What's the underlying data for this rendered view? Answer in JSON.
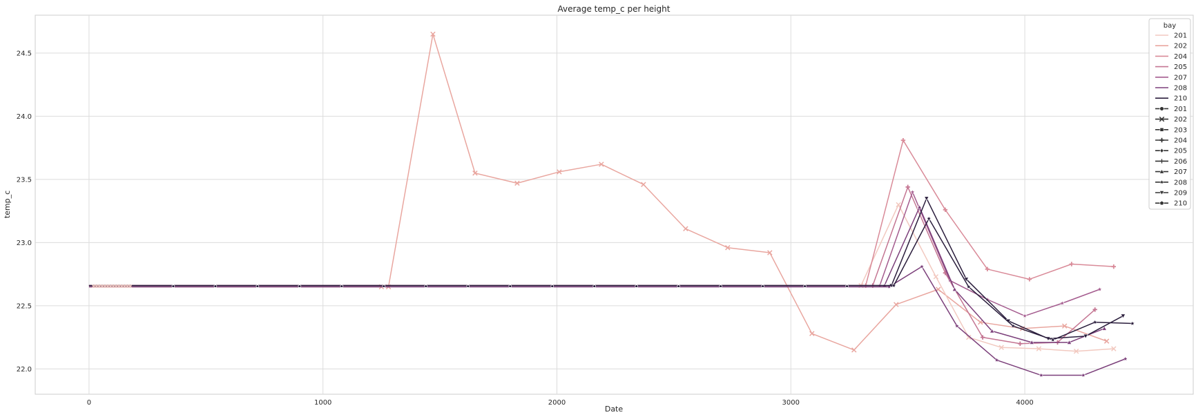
{
  "chart_data": {
    "type": "line",
    "title": "Average temp_c per height",
    "xlabel": "Date",
    "ylabel": "temp_c",
    "xlim": [
      -230,
      4720
    ],
    "ylim": [
      21.8,
      24.8
    ],
    "xticks": [
      0,
      1000,
      2000,
      3000,
      4000
    ],
    "yticks": [
      22.0,
      22.5,
      23.0,
      23.5,
      24.0,
      24.5
    ],
    "grid": true,
    "legend_title": "bay",
    "legend_placement": "top-right",
    "hue_legend": [
      {
        "label": "201",
        "color": "#f2c9c0"
      },
      {
        "label": "202",
        "color": "#e9a69f"
      },
      {
        "label": "204",
        "color": "#d98a98"
      },
      {
        "label": "205",
        "color": "#c47592"
      },
      {
        "label": "207",
        "color": "#a45b8e"
      },
      {
        "label": "208",
        "color": "#7b3f7a"
      },
      {
        "label": "210",
        "color": "#2a1d3c"
      }
    ],
    "style_legend": [
      {
        "label": "201",
        "marker": "circle"
      },
      {
        "label": "202",
        "marker": "x"
      },
      {
        "label": "203",
        "marker": "square"
      },
      {
        "label": "204",
        "marker": "plus"
      },
      {
        "label": "205",
        "marker": "diamond"
      },
      {
        "label": "206",
        "marker": "cross"
      },
      {
        "label": "207",
        "marker": "triangle-up"
      },
      {
        "label": "208",
        "marker": "star"
      },
      {
        "label": "209",
        "marker": "triangle-down"
      },
      {
        "label": "210",
        "marker": "pentagon"
      }
    ],
    "series": [
      {
        "color": "#e9a69f",
        "marker": "x",
        "x": [
          0,
          40,
          80,
          1250,
          1280,
          1470,
          1650,
          1830,
          2010,
          2190,
          2370,
          2550,
          2730,
          2910,
          3090,
          3270,
          3450,
          3630,
          3810,
          3990,
          4170,
          4350
        ],
        "y": [
          22.65,
          22.65,
          22.65,
          22.65,
          22.65,
          24.65,
          23.55,
          23.47,
          23.56,
          23.62,
          23.46,
          23.11,
          22.96,
          22.92,
          22.28,
          22.15,
          22.51,
          22.63,
          22.37,
          22.32,
          22.34,
          22.22
        ]
      },
      {
        "color": "#f2c9c0",
        "marker": "x",
        "x": [
          0,
          3300,
          3460,
          3620,
          3760,
          3900,
          4060,
          4220,
          4380
        ],
        "y": [
          22.66,
          22.66,
          23.3,
          22.73,
          22.25,
          22.17,
          22.16,
          22.14,
          22.16
        ]
      },
      {
        "color": "#d98a98",
        "marker": "plus",
        "x": [
          0,
          3320,
          3480,
          3660,
          3840,
          4020,
          4200,
          4380
        ],
        "y": [
          22.66,
          22.66,
          23.81,
          23.26,
          22.79,
          22.71,
          22.83,
          22.81
        ]
      },
      {
        "color": "#c47592",
        "marker": "plus",
        "x": [
          0,
          3350,
          3500,
          3660,
          3820,
          3980,
          4140,
          4300
        ],
        "y": [
          22.66,
          22.66,
          23.44,
          22.76,
          22.25,
          22.2,
          22.21,
          22.47
        ]
      },
      {
        "color": "#a45b8e",
        "marker": "star",
        "x": [
          0,
          3380,
          3520,
          3680,
          3840,
          4000,
          4160,
          4320
        ],
        "y": [
          22.66,
          22.66,
          23.4,
          22.7,
          22.55,
          22.42,
          22.52,
          22.63
        ]
      },
      {
        "color": "#7b3f7a",
        "marker": "triangle-up",
        "x": [
          0,
          3400,
          3550,
          3700,
          3860,
          4030,
          4190,
          4340
        ],
        "y": [
          22.66,
          22.66,
          23.28,
          22.63,
          22.3,
          22.21,
          22.21,
          22.32
        ]
      },
      {
        "color": "#7b3f7a",
        "marker": "star",
        "x": [
          0,
          3420,
          3560,
          3710,
          3880,
          4070,
          4250,
          4430
        ],
        "y": [
          22.65,
          22.65,
          22.81,
          22.34,
          22.07,
          21.95,
          21.95,
          22.08
        ]
      },
      {
        "color": "#2a1d3c",
        "marker": "triangle-down",
        "x": [
          0,
          3430,
          3580,
          3750,
          3930,
          4100,
          4260,
          4420
        ],
        "y": [
          22.66,
          22.66,
          23.35,
          22.71,
          22.38,
          22.24,
          22.26,
          22.42
        ]
      },
      {
        "color": "#2a1d3c",
        "marker": "star",
        "x": [
          0,
          3440,
          3590,
          3760,
          3950,
          4120,
          4300,
          4460
        ],
        "y": [
          22.66,
          22.66,
          23.19,
          22.65,
          22.34,
          22.23,
          22.37,
          22.36
        ]
      }
    ]
  }
}
